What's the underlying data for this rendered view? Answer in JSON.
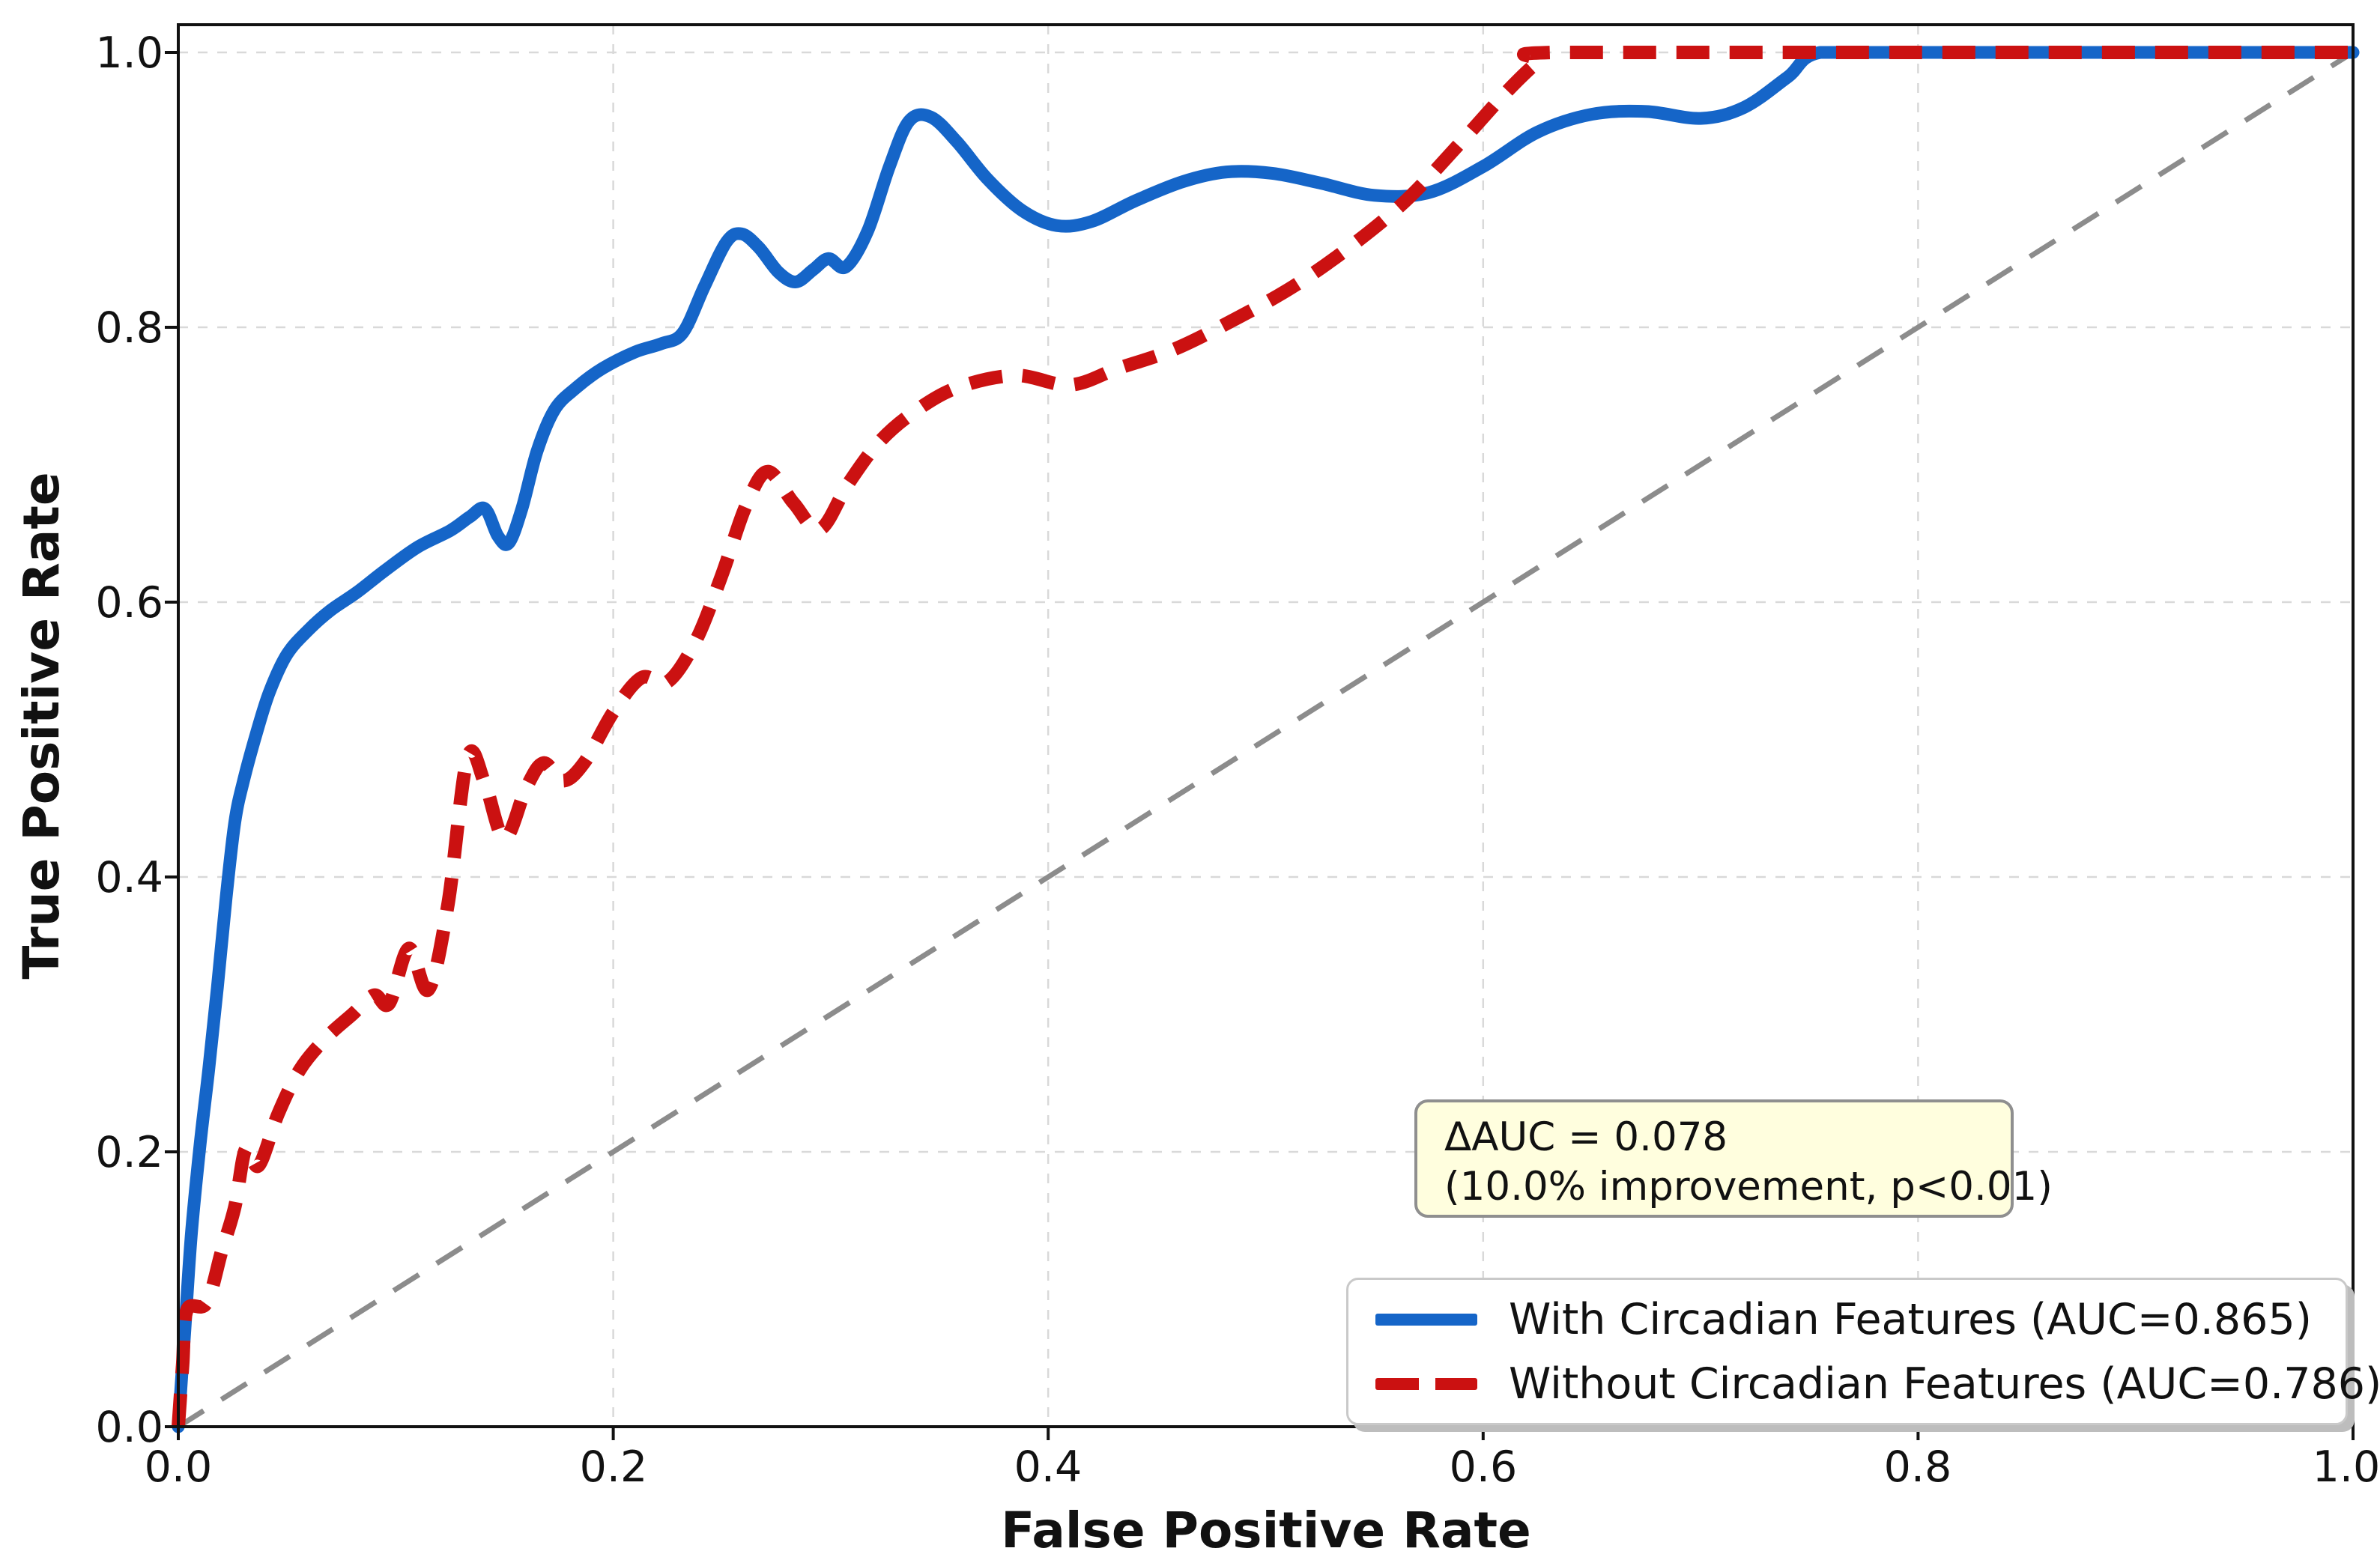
{
  "chart_data": {
    "type": "line",
    "subtype": "roc-curve-comparison",
    "title": "",
    "xlabel": "False Positive Rate",
    "ylabel": "True Positive Rate",
    "xlim": [
      0.0,
      1.0
    ],
    "ylim": [
      0.0,
      1.02
    ],
    "grid": "dashed light gray, on both axes",
    "x_ticks": [
      0.0,
      0.2,
      0.4,
      0.6,
      0.8,
      1.0
    ],
    "x_tick_labels": [
      "0.0",
      "0.2",
      "0.4",
      "0.6",
      "0.8",
      "1.0"
    ],
    "y_ticks": [
      0.0,
      0.2,
      0.4,
      0.6,
      0.8,
      1.0
    ],
    "y_tick_labels": [
      "0.0",
      "0.2",
      "0.4",
      "0.6",
      "0.8",
      "1.0"
    ],
    "grid_x": [
      0.2,
      0.4,
      0.6,
      0.8
    ],
    "grid_y": [
      0.2,
      0.4,
      0.6,
      0.8,
      1.0
    ],
    "colors": {
      "with_circadian": "#1565c8",
      "without_circadian": "#cb1111",
      "chance_diagonal": "#8c8c8c",
      "gridline": "#d9d9d9",
      "spine": "#111111",
      "annotation_bg": "#fffede",
      "annotation_border": "#8f8f8f",
      "legend_border": "#c9c9c9",
      "legend_shadow": "#bdbdbd"
    },
    "legend": {
      "position": "lower right",
      "entries": [
        "With Circadian Features (AUC=0.865)",
        "Without Circadian Features (AUC=0.786)"
      ]
    },
    "annotation": {
      "line1": "ΔAUC = 0.078",
      "line2": "(10.0% improvement, p<0.01)"
    },
    "series": [
      {
        "name": "With Circadian Features (AUC=0.865)",
        "auc": 0.865,
        "color": "#1565c8",
        "line_style": "solid",
        "points": [
          [
            0.0,
            0.0
          ],
          [
            0.003,
            0.07
          ],
          [
            0.006,
            0.14
          ],
          [
            0.01,
            0.205
          ],
          [
            0.014,
            0.26
          ],
          [
            0.018,
            0.32
          ],
          [
            0.022,
            0.385
          ],
          [
            0.026,
            0.44
          ],
          [
            0.03,
            0.47
          ],
          [
            0.036,
            0.505
          ],
          [
            0.042,
            0.535
          ],
          [
            0.05,
            0.562
          ],
          [
            0.06,
            0.58
          ],
          [
            0.07,
            0.594
          ],
          [
            0.082,
            0.607
          ],
          [
            0.095,
            0.623
          ],
          [
            0.11,
            0.64
          ],
          [
            0.125,
            0.652
          ],
          [
            0.134,
            0.662
          ],
          [
            0.141,
            0.668
          ],
          [
            0.147,
            0.648
          ],
          [
            0.152,
            0.643
          ],
          [
            0.158,
            0.668
          ],
          [
            0.165,
            0.71
          ],
          [
            0.173,
            0.74
          ],
          [
            0.183,
            0.756
          ],
          [
            0.195,
            0.77
          ],
          [
            0.21,
            0.782
          ],
          [
            0.222,
            0.788
          ],
          [
            0.232,
            0.796
          ],
          [
            0.242,
            0.83
          ],
          [
            0.252,
            0.862
          ],
          [
            0.259,
            0.868
          ],
          [
            0.267,
            0.858
          ],
          [
            0.276,
            0.84
          ],
          [
            0.284,
            0.833
          ],
          [
            0.292,
            0.842
          ],
          [
            0.299,
            0.85
          ],
          [
            0.307,
            0.844
          ],
          [
            0.317,
            0.87
          ],
          [
            0.327,
            0.917
          ],
          [
            0.336,
            0.95
          ],
          [
            0.346,
            0.953
          ],
          [
            0.358,
            0.935
          ],
          [
            0.372,
            0.908
          ],
          [
            0.388,
            0.885
          ],
          [
            0.404,
            0.874
          ],
          [
            0.42,
            0.877
          ],
          [
            0.44,
            0.892
          ],
          [
            0.462,
            0.906
          ],
          [
            0.482,
            0.913
          ],
          [
            0.503,
            0.912
          ],
          [
            0.525,
            0.905
          ],
          [
            0.55,
            0.896
          ],
          [
            0.575,
            0.898
          ],
          [
            0.6,
            0.917
          ],
          [
            0.625,
            0.942
          ],
          [
            0.65,
            0.955
          ],
          [
            0.675,
            0.957
          ],
          [
            0.7,
            0.952
          ],
          [
            0.72,
            0.96
          ],
          [
            0.74,
            0.982
          ],
          [
            0.755,
            1.0
          ],
          [
            0.8,
            1.0
          ],
          [
            1.0,
            1.0
          ]
        ]
      },
      {
        "name": "Without Circadian Features (AUC=0.786)",
        "auc": 0.786,
        "color": "#cb1111",
        "line_style": "dashed",
        "points": [
          [
            0.0,
            0.0
          ],
          [
            0.002,
            0.045
          ],
          [
            0.004,
            0.085
          ],
          [
            0.013,
            0.09
          ],
          [
            0.02,
            0.128
          ],
          [
            0.026,
            0.16
          ],
          [
            0.031,
            0.202
          ],
          [
            0.037,
            0.19
          ],
          [
            0.046,
            0.228
          ],
          [
            0.056,
            0.26
          ],
          [
            0.068,
            0.283
          ],
          [
            0.08,
            0.3
          ],
          [
            0.09,
            0.314
          ],
          [
            0.097,
            0.308
          ],
          [
            0.106,
            0.348
          ],
          [
            0.115,
            0.318
          ],
          [
            0.124,
            0.38
          ],
          [
            0.133,
            0.487
          ],
          [
            0.141,
            0.468
          ],
          [
            0.15,
            0.428
          ],
          [
            0.16,
            0.465
          ],
          [
            0.168,
            0.483
          ],
          [
            0.177,
            0.47
          ],
          [
            0.187,
            0.484
          ],
          [
            0.2,
            0.52
          ],
          [
            0.213,
            0.545
          ],
          [
            0.225,
            0.542
          ],
          [
            0.238,
            0.572
          ],
          [
            0.25,
            0.62
          ],
          [
            0.261,
            0.67
          ],
          [
            0.271,
            0.695
          ],
          [
            0.283,
            0.672
          ],
          [
            0.295,
            0.653
          ],
          [
            0.308,
            0.686
          ],
          [
            0.322,
            0.716
          ],
          [
            0.338,
            0.738
          ],
          [
            0.358,
            0.756
          ],
          [
            0.385,
            0.765
          ],
          [
            0.41,
            0.758
          ],
          [
            0.432,
            0.77
          ],
          [
            0.458,
            0.784
          ],
          [
            0.486,
            0.806
          ],
          [
            0.513,
            0.83
          ],
          [
            0.54,
            0.86
          ],
          [
            0.565,
            0.893
          ],
          [
            0.59,
            0.935
          ],
          [
            0.61,
            0.97
          ],
          [
            0.625,
            0.993
          ],
          [
            0.633,
            1.0
          ],
          [
            0.8,
            1.0
          ],
          [
            1.0,
            1.0
          ]
        ]
      },
      {
        "name": "chance-diagonal",
        "color": "#8c8c8c",
        "line_style": "dashed",
        "points": [
          [
            0.0,
            0.0
          ],
          [
            1.0,
            1.0
          ]
        ]
      }
    ]
  }
}
